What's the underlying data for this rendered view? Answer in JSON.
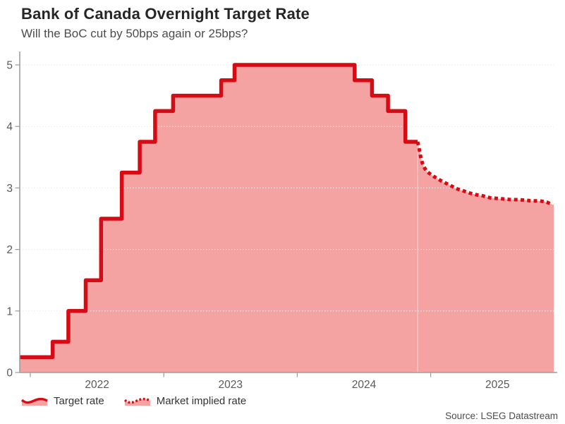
{
  "chart_data": {
    "type": "area",
    "title": "Bank of Canada Overnight Target Rate",
    "subtitle": "Will the BoC cut by 50bps again or 25bps?",
    "source": "Source: LSEG Datastream",
    "ylabel": "",
    "xlabel": "",
    "ylim": [
      0,
      5.25
    ],
    "yticks": [
      0,
      1,
      2,
      3,
      4,
      5
    ],
    "xticks_years": [
      2022,
      2023,
      2024,
      2025
    ],
    "x_range_years": [
      2021.92,
      2025.92
    ],
    "grid": "horizontal-dotted",
    "legend_position": "bottom-left",
    "series": [
      {
        "name": "Target rate",
        "style": "solid-step",
        "points": [
          [
            2021.92,
            0.25
          ],
          [
            2022.167,
            0.5
          ],
          [
            2022.285,
            1.0
          ],
          [
            2022.415,
            1.5
          ],
          [
            2022.53,
            2.5
          ],
          [
            2022.685,
            3.25
          ],
          [
            2022.82,
            3.75
          ],
          [
            2022.935,
            4.25
          ],
          [
            2023.07,
            4.5
          ],
          [
            2023.43,
            4.75
          ],
          [
            2023.53,
            5.0
          ],
          [
            2024.43,
            4.75
          ],
          [
            2024.56,
            4.5
          ],
          [
            2024.68,
            4.25
          ],
          [
            2024.81,
            3.75
          ],
          [
            2024.902,
            3.75
          ]
        ]
      },
      {
        "name": "Market implied rate",
        "style": "dotted",
        "points": [
          [
            2024.902,
            3.75
          ],
          [
            2024.917,
            3.6
          ],
          [
            2024.928,
            3.47
          ],
          [
            2024.944,
            3.36
          ],
          [
            2024.97,
            3.27
          ],
          [
            2025.007,
            3.21
          ],
          [
            2025.05,
            3.15
          ],
          [
            2025.092,
            3.1
          ],
          [
            2025.14,
            3.05
          ],
          [
            2025.192,
            2.99
          ],
          [
            2025.235,
            2.96
          ],
          [
            2025.287,
            2.92
          ],
          [
            2025.34,
            2.89
          ],
          [
            2025.393,
            2.87
          ],
          [
            2025.446,
            2.84
          ],
          [
            2025.499,
            2.83
          ],
          [
            2025.552,
            2.82
          ],
          [
            2025.605,
            2.81
          ],
          [
            2025.657,
            2.81
          ],
          [
            2025.71,
            2.8
          ],
          [
            2025.763,
            2.79
          ],
          [
            2025.816,
            2.79
          ],
          [
            2025.869,
            2.77
          ],
          [
            2025.911,
            2.73
          ]
        ]
      }
    ],
    "colors": {
      "line": "#d60b14",
      "fill": "#f5a2a2",
      "grid": "#ececec",
      "axis": "#999999",
      "title_color": "#262626",
      "subtitle_color": "#4b4b4b",
      "tick_label_color": "#595959",
      "legend_color": "#333333",
      "source_color": "#4b4b4b"
    }
  }
}
